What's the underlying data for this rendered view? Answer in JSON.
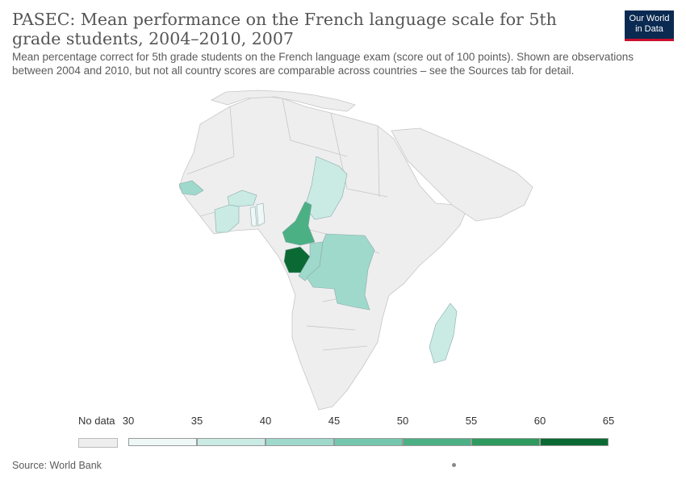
{
  "header": {
    "title": "PASEC: Mean performance on the French language scale for 5th grade students, 2004–2010, 2007",
    "subtitle": "Mean percentage correct for 5th grade students on the French language exam (score out of 100 points). Shown are observations between 2004 and 2010, but not all country scores are comparable across countries – see the Sources tab for detail."
  },
  "logo": {
    "line1": "Our World",
    "line2": "in Data",
    "bg_color": "#0a2a51",
    "accent_color": "#c8102e"
  },
  "legend": {
    "no_data_label": "No data",
    "no_data_color": "#eeeeee",
    "ticks": [
      "30",
      "35",
      "40",
      "45",
      "50",
      "55",
      "60",
      "65"
    ],
    "bins": [
      {
        "min": 30,
        "max": 35,
        "color": "#eef8f7"
      },
      {
        "min": 35,
        "max": 40,
        "color": "#c9ebe4"
      },
      {
        "min": 40,
        "max": 45,
        "color": "#9fd9cb"
      },
      {
        "min": 45,
        "max": 50,
        "color": "#74c7ad"
      },
      {
        "min": 50,
        "max": 55,
        "color": "#4cb085"
      },
      {
        "min": 55,
        "max": 60,
        "color": "#2e9a5d"
      },
      {
        "min": 60,
        "max": 65,
        "color": "#0b6a33"
      }
    ]
  },
  "map": {
    "background_land_color": "#eeeeee",
    "countries": [
      {
        "id": "senegal",
        "bin": 1
      },
      {
        "id": "burkina-faso",
        "bin": 1
      },
      {
        "id": "cote-divoire",
        "bin": 1
      },
      {
        "id": "togo",
        "bin": 0
      },
      {
        "id": "benin",
        "bin": 0
      },
      {
        "id": "chad",
        "bin": 1
      },
      {
        "id": "cameroon",
        "bin": 4
      },
      {
        "id": "gabon",
        "bin": 6
      },
      {
        "id": "congo",
        "bin": 2
      },
      {
        "id": "dr-congo",
        "bin": 2
      },
      {
        "id": "madagascar",
        "bin": 1
      }
    ]
  },
  "footer": {
    "source": "Source: World Bank"
  }
}
